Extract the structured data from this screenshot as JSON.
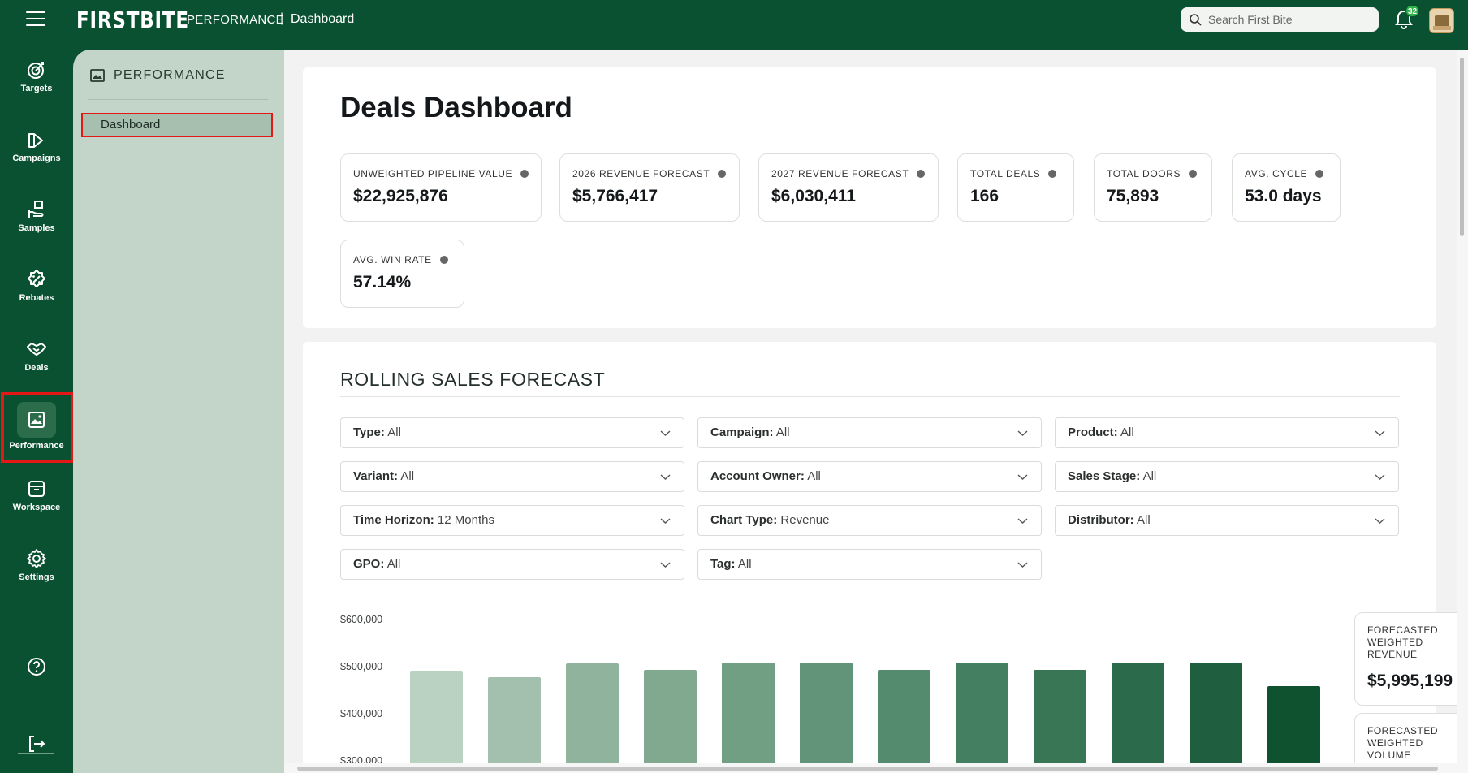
{
  "topbar": {
    "brand": "FIRSTBITE",
    "section": "PERFORMANCE",
    "separator": "|",
    "page": "Dashboard",
    "search_placeholder": "Search First Bite",
    "notification_count": "32"
  },
  "rail": {
    "items": [
      {
        "label": "Targets",
        "icon": "target-icon"
      },
      {
        "label": "Campaigns",
        "icon": "megaphone-icon"
      },
      {
        "label": "Samples",
        "icon": "hand-box-icon"
      },
      {
        "label": "Rebates",
        "icon": "percent-badge-icon"
      },
      {
        "label": "Deals",
        "icon": "handshake-icon"
      },
      {
        "label": "Performance",
        "icon": "chart-image-icon"
      },
      {
        "label": "Workspace",
        "icon": "inbox-icon"
      },
      {
        "label": "Settings",
        "icon": "gear-icon"
      }
    ],
    "help_icon": "help-icon",
    "logout_icon": "logout-icon"
  },
  "subnav": {
    "title": "PERFORMANCE",
    "items": [
      {
        "label": "Dashboard",
        "active": true
      }
    ]
  },
  "dashboard": {
    "title": "Deals Dashboard",
    "stats": [
      {
        "label": "UNWEIGHTED PIPELINE VALUE",
        "value": "$22,925,876"
      },
      {
        "label": "2026 REVENUE FORECAST",
        "value": "$5,766,417"
      },
      {
        "label": "2027 REVENUE FORECAST",
        "value": "$6,030,411"
      },
      {
        "label": "TOTAL DEALS",
        "value": "166"
      },
      {
        "label": "TOTAL DOORS",
        "value": "75,893"
      },
      {
        "label": "AVG. CYCLE",
        "value": "53.0 days"
      },
      {
        "label": "AVG. WIN RATE",
        "value": "57.14%"
      }
    ]
  },
  "forecast": {
    "title": "ROLLING SALES FORECAST",
    "filters": [
      {
        "key": "Type:",
        "value": "All"
      },
      {
        "key": "Campaign:",
        "value": "All"
      },
      {
        "key": "Product:",
        "value": "All"
      },
      {
        "key": "Variant:",
        "value": "All"
      },
      {
        "key": "Account Owner:",
        "value": "All"
      },
      {
        "key": "Sales Stage:",
        "value": "All"
      },
      {
        "key": "Time Horizon:",
        "value": "12 Months"
      },
      {
        "key": "Chart Type:",
        "value": "Revenue"
      },
      {
        "key": "Distributor:",
        "value": "All"
      },
      {
        "key": "GPO:",
        "value": "All"
      },
      {
        "key": "Tag:",
        "value": "All"
      }
    ],
    "side_kpis": [
      {
        "label": "FORECASTED WEIGHTED REVENUE",
        "value": "$5,995,199"
      },
      {
        "label": "FORECASTED WEIGHTED VOLUME",
        "value": ""
      }
    ]
  },
  "chart_data": {
    "type": "bar",
    "y_ticks": [
      "$600,000",
      "$500,000",
      "$400,000",
      "$300,000"
    ],
    "ylim": [
      300000,
      600000
    ],
    "values": [
      493000,
      480000,
      509000,
      494000,
      511000,
      511000,
      494000,
      511000,
      494000,
      511000,
      511000,
      461000
    ],
    "colors": [
      "#b9d2c2",
      "#a2c0ad",
      "#8fb39c",
      "#80a990",
      "#709f84",
      "#619479",
      "#548b6e",
      "#447f61",
      "#397656",
      "#2b6b4b",
      "#1f5e3f",
      "#0f5230"
    ]
  }
}
